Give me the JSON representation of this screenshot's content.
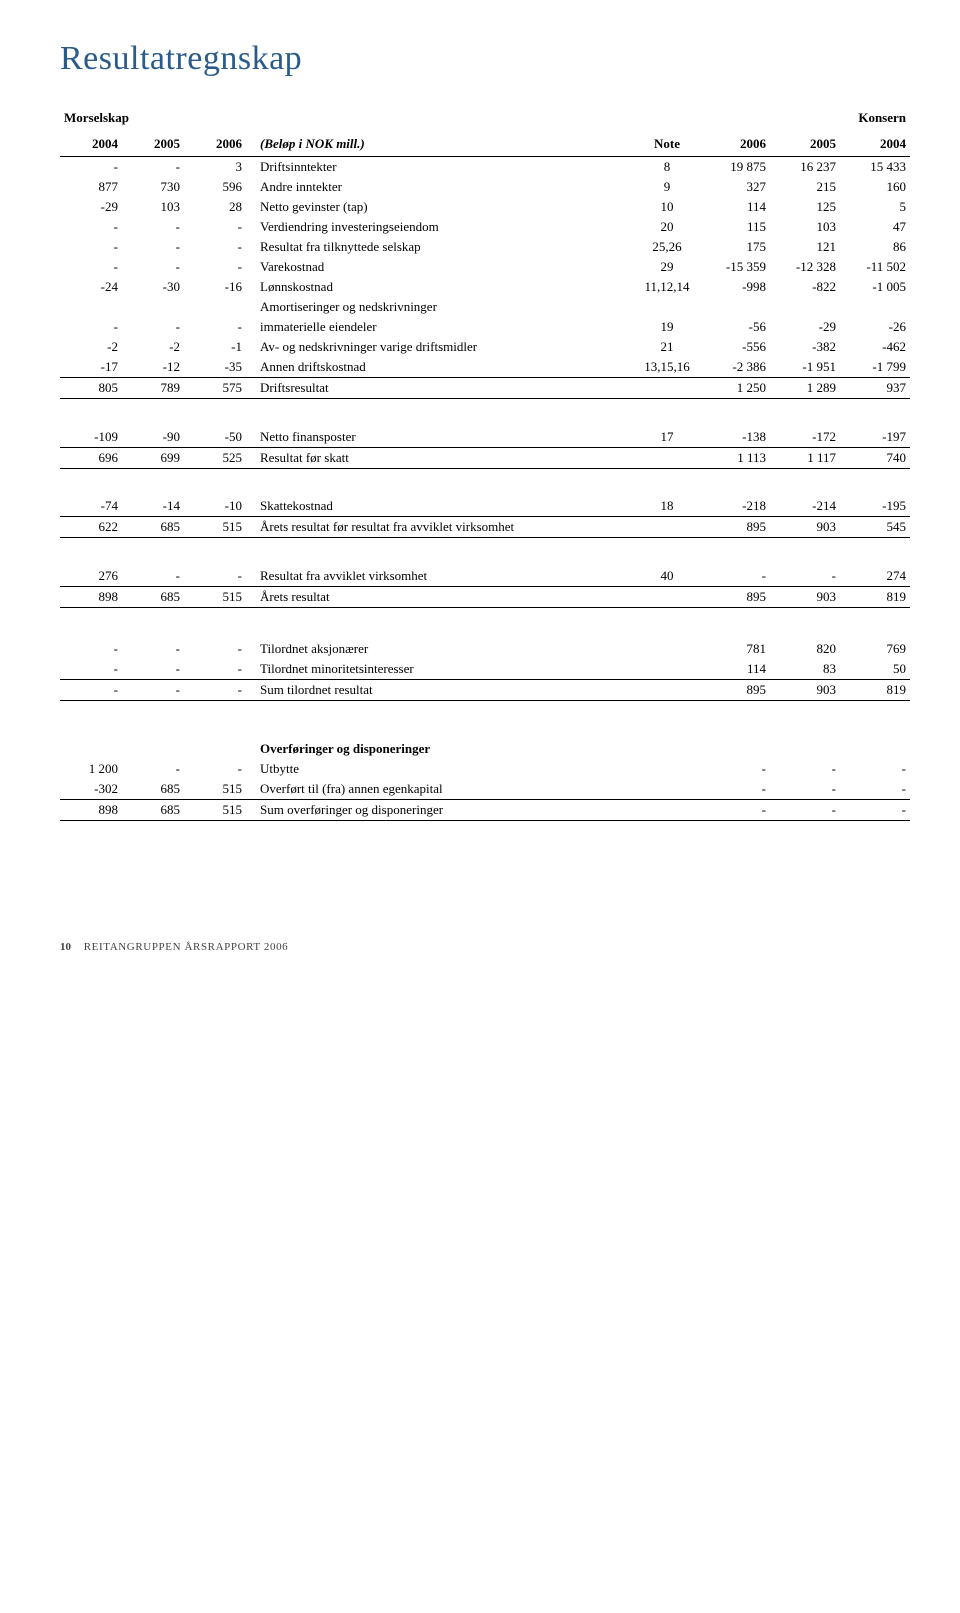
{
  "title": "Resultatregnskap",
  "left_label": "Morselskap",
  "right_label": "Konsern",
  "col_headers_left": [
    "2004",
    "2005",
    "2006"
  ],
  "center_header": "(Beløp i NOK mill.)",
  "note_header": "Note",
  "col_headers_right": [
    "2006",
    "2005",
    "2004"
  ],
  "blocks": [
    {
      "type": "rows",
      "rows": [
        {
          "l": [
            "-",
            "-",
            "3"
          ],
          "desc": "Driftsinntekter",
          "note": "8",
          "r": [
            "19 875",
            "16 237",
            "15 433"
          ]
        },
        {
          "l": [
            "877",
            "730",
            "596"
          ],
          "desc": "Andre inntekter",
          "note": "9",
          "r": [
            "327",
            "215",
            "160"
          ]
        },
        {
          "l": [
            "-29",
            "103",
            "28"
          ],
          "desc": "Netto gevinster (tap)",
          "note": "10",
          "r": [
            "114",
            "125",
            "5"
          ]
        },
        {
          "l": [
            "-",
            "-",
            "-"
          ],
          "desc": "Verdiendring investeringseiendom",
          "note": "20",
          "r": [
            "115",
            "103",
            "47"
          ]
        },
        {
          "l": [
            "-",
            "-",
            "-"
          ],
          "desc": "Resultat fra tilknyttede selskap",
          "note": "25,26",
          "r": [
            "175",
            "121",
            "86"
          ]
        },
        {
          "l": [
            "-",
            "-",
            "-"
          ],
          "desc": "Varekostnad",
          "note": "29",
          "r": [
            "-15 359",
            "-12 328",
            "-11 502"
          ]
        },
        {
          "l": [
            "-24",
            "-30",
            "-16"
          ],
          "desc": "Lønnskostnad",
          "note": "11,12,14",
          "r": [
            "-998",
            "-822",
            "-1 005"
          ]
        },
        {
          "l": [
            "",
            "",
            ""
          ],
          "desc": "Amortiseringer og nedskrivninger",
          "note": "",
          "r": [
            "",
            "",
            ""
          ]
        },
        {
          "l": [
            "-",
            "-",
            "-"
          ],
          "desc": "immaterielle eiendeler",
          "note": "19",
          "r": [
            "-56",
            "-29",
            "-26"
          ]
        },
        {
          "l": [
            "-2",
            "-2",
            "-1"
          ],
          "desc": "Av- og nedskrivninger varige driftsmidler",
          "note": "21",
          "r": [
            "-556",
            "-382",
            "-462"
          ]
        },
        {
          "l": [
            "-17",
            "-12",
            "-35"
          ],
          "desc": "Annen driftskostnad",
          "note": "13,15,16",
          "r": [
            "-2 386",
            "-1 951",
            "-1 799"
          ],
          "underline": true
        },
        {
          "l": [
            "805",
            "789",
            "575"
          ],
          "desc": "Driftsresultat",
          "note": "",
          "r": [
            "1 250",
            "1 289",
            "937"
          ],
          "underline": true
        }
      ]
    },
    {
      "type": "spacer"
    },
    {
      "type": "rows",
      "rows": [
        {
          "l": [
            "-109",
            "-90",
            "-50"
          ],
          "desc": "Netto finansposter",
          "note": "17",
          "r": [
            "-138",
            "-172",
            "-197"
          ],
          "underline": true
        },
        {
          "l": [
            "696",
            "699",
            "525"
          ],
          "desc": "Resultat før skatt",
          "note": "",
          "r": [
            "1 113",
            "1 117",
            "740"
          ],
          "underline": true
        }
      ]
    },
    {
      "type": "spacer"
    },
    {
      "type": "rows",
      "rows": [
        {
          "l": [
            "-74",
            "-14",
            "-10"
          ],
          "desc": "Skattekostnad",
          "note": "18",
          "r": [
            "-218",
            "-214",
            "-195"
          ],
          "underline": true
        },
        {
          "l": [
            "622",
            "685",
            "515"
          ],
          "desc": "Årets resultat før resultat fra avviklet virksomhet",
          "note": "",
          "r": [
            "895",
            "903",
            "545"
          ],
          "underline": true
        }
      ]
    },
    {
      "type": "spacer"
    },
    {
      "type": "rows",
      "rows": [
        {
          "l": [
            "276",
            "-",
            "-"
          ],
          "desc": "Resultat fra avviklet virksomhet",
          "note": "40",
          "r": [
            "-",
            "-",
            "274"
          ],
          "underline": true
        },
        {
          "l": [
            "898",
            "685",
            "515"
          ],
          "desc": "Årets resultat",
          "note": "",
          "r": [
            "895",
            "903",
            "819"
          ],
          "underline": true
        }
      ]
    },
    {
      "type": "spacer"
    },
    {
      "type": "spacer-sm"
    },
    {
      "type": "rows",
      "rows": [
        {
          "l": [
            "-",
            "-",
            "-"
          ],
          "desc": "Tilordnet aksjonærer",
          "note": "",
          "r": [
            "781",
            "820",
            "769"
          ]
        },
        {
          "l": [
            "-",
            "-",
            "-"
          ],
          "desc": "Tilordnet minoritetsinteresser",
          "note": "",
          "r": [
            "114",
            "83",
            "50"
          ],
          "underline": true
        },
        {
          "l": [
            "-",
            "-",
            "-"
          ],
          "desc": "Sum tilordnet resultat",
          "note": "",
          "r": [
            "895",
            "903",
            "819"
          ],
          "underline": true
        }
      ]
    },
    {
      "type": "spacer"
    },
    {
      "type": "spacer-sm"
    },
    {
      "type": "section-title",
      "text": "Overføringer og disponeringer"
    },
    {
      "type": "rows",
      "rows": [
        {
          "l": [
            "1 200",
            "-",
            "-"
          ],
          "desc": "Utbytte",
          "note": "",
          "r": [
            "-",
            "-",
            "-"
          ]
        },
        {
          "l": [
            "-302",
            "685",
            "515"
          ],
          "desc": "Overført til (fra) annen egenkapital",
          "note": "",
          "r": [
            "-",
            "-",
            "-"
          ],
          "underline": true
        },
        {
          "l": [
            "898",
            "685",
            "515"
          ],
          "desc": "Sum overføringer og disponeringer",
          "note": "",
          "r": [
            "-",
            "-",
            "-"
          ],
          "underline": true
        }
      ]
    }
  ],
  "footer": {
    "page": "10",
    "text": "Reitangruppen Årsrapport 2006"
  }
}
